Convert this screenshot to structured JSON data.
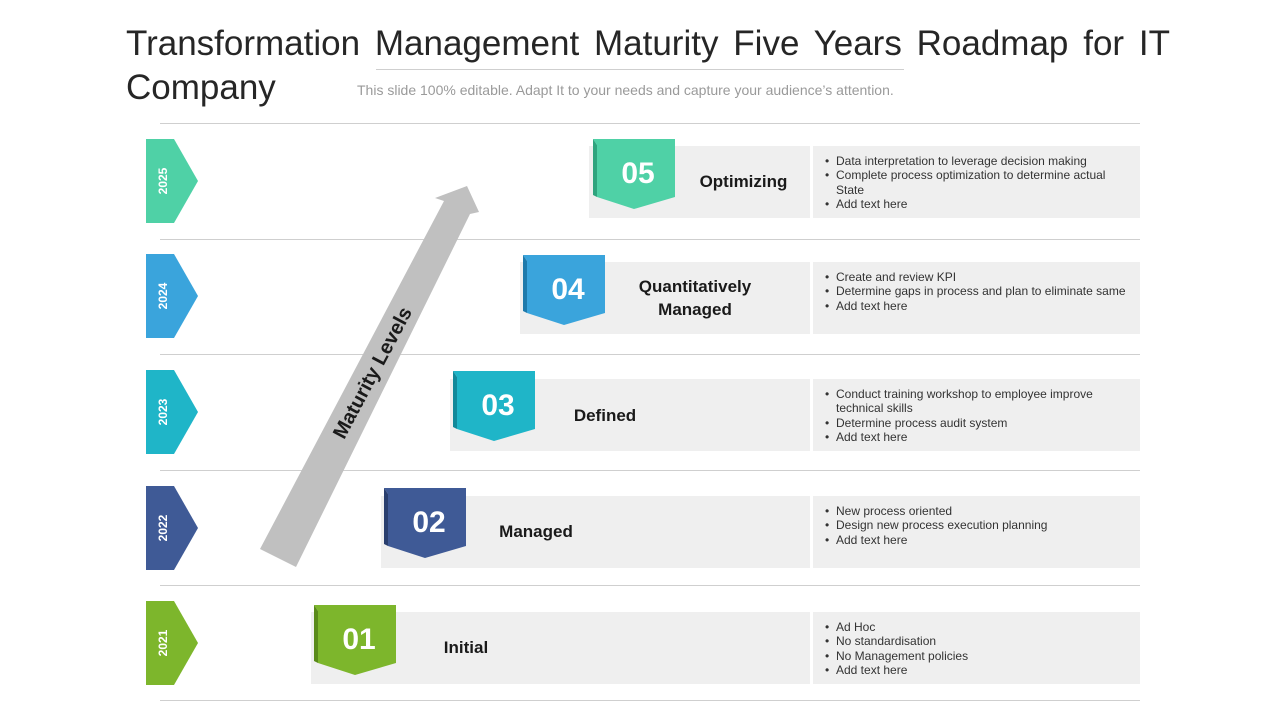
{
  "header": {
    "title": "Transformation  Management Maturity Five Years Roadmap for IT Company",
    "subtitle": "This slide 100% editable. Adapt  It to your needs and capture your audience’s attention."
  },
  "arrow": {
    "label": "Maturity Levels",
    "color": "#c0c0c0"
  },
  "stages": [
    {
      "year": "2025",
      "number": "05",
      "name": "Optimizing",
      "color": "#4fd1a6",
      "items": [
        "Data interpretation to leverage decision making",
        "Complete process optimization to determine actual State",
        "Add text here"
      ]
    },
    {
      "year": "2024",
      "number": "04",
      "name": "Quantitatively Managed",
      "color": "#3aa4dc",
      "items": [
        "Create and review KPI",
        "Determine gaps in process and plan to eliminate same",
        "Add text here"
      ]
    },
    {
      "year": "2023",
      "number": "03",
      "name": "Defined",
      "color": "#1fb5c8",
      "items": [
        "Conduct training workshop to  employee improve technical skills",
        "Determine process audit system",
        "Add text here"
      ]
    },
    {
      "year": "2022",
      "number": "02",
      "name": "Managed",
      "color": "#3f5a96",
      "items": [
        "New process oriented",
        "Design new process execution planning",
        "Add text here"
      ]
    },
    {
      "year": "2021",
      "number": "01",
      "name": "Initial",
      "color": "#7db62c",
      "items": [
        "Ad Hoc",
        "No standardisation",
        "No Management policies",
        "Add text here"
      ]
    }
  ]
}
